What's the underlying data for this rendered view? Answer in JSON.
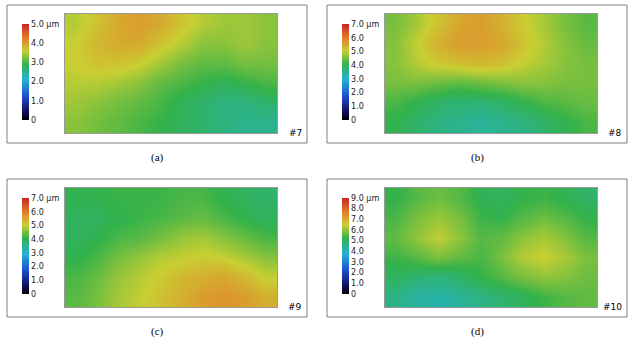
{
  "chart_data": [
    {
      "type": "heatmap",
      "label": "#7",
      "caption": "(a)",
      "tick_labels": false,
      "z": [
        [
          3.3,
          3.2,
          3.1,
          3.0,
          2.9,
          2.8,
          2.7,
          2.6,
          2.5,
          2.5
        ],
        [
          3.4,
          3.3,
          3.2,
          3.1,
          3.0,
          2.8,
          2.7,
          2.6,
          2.6,
          2.7
        ],
        [
          3.5,
          3.5,
          3.4,
          3.3,
          3.1,
          3.0,
          2.9,
          2.8,
          2.9,
          3.0
        ],
        [
          3.6,
          3.7,
          3.7,
          3.6,
          3.4,
          3.2,
          3.1,
          3.1,
          3.2,
          3.2
        ],
        [
          3.6,
          3.8,
          3.9,
          3.9,
          3.7,
          3.5,
          3.3,
          3.3,
          3.4,
          3.3
        ],
        [
          3.5,
          3.7,
          3.9,
          4.0,
          3.9,
          3.7,
          3.5,
          3.4,
          3.4,
          3.3
        ]
      ],
      "colorbar_range": [
        0,
        5
      ],
      "colorbar_ticks": [
        {
          "value": 5,
          "label": "5.0 µm"
        },
        {
          "value": 4,
          "label": "4.0"
        },
        {
          "value": 3,
          "label": "3.0"
        },
        {
          "value": 2,
          "label": "2.0"
        },
        {
          "value": 1,
          "label": "1.0"
        },
        0
      ]
    },
    {
      "type": "heatmap",
      "label": "#8",
      "caption": "(b)",
      "tick_labels": false,
      "z": [
        [
          4.0,
          3.8,
          3.6,
          3.5,
          3.4,
          3.5,
          3.6,
          3.8,
          4.0,
          4.2
        ],
        [
          4.2,
          4.0,
          3.8,
          3.7,
          3.7,
          3.8,
          4.0,
          4.2,
          4.3,
          4.4
        ],
        [
          4.5,
          4.5,
          4.4,
          4.3,
          4.4,
          4.5,
          4.6,
          4.6,
          4.5,
          4.5
        ],
        [
          4.6,
          4.9,
          5.1,
          5.2,
          5.3,
          5.2,
          5.0,
          4.8,
          4.6,
          4.5
        ],
        [
          4.6,
          5.0,
          5.4,
          5.6,
          5.6,
          5.5,
          5.2,
          4.9,
          4.6,
          4.4
        ],
        [
          4.5,
          4.8,
          5.2,
          5.5,
          5.6,
          5.4,
          5.1,
          4.8,
          4.5,
          4.3
        ]
      ],
      "colorbar_range": [
        0,
        7
      ],
      "colorbar_ticks": [
        {
          "value": 7,
          "label": "7.0 µm"
        },
        {
          "value": 6,
          "label": "6.0"
        },
        {
          "value": 5,
          "label": "5.0"
        },
        {
          "value": 4,
          "label": "4.0"
        },
        {
          "value": 3,
          "label": "3.0"
        },
        {
          "value": 2,
          "label": "2.0"
        },
        {
          "value": 1,
          "label": "1.0"
        },
        0
      ]
    },
    {
      "type": "heatmap",
      "label": "#9",
      "caption": "(c)",
      "tick_labels": false,
      "z": [
        [
          4.3,
          4.5,
          4.8,
          5.0,
          5.2,
          5.4,
          5.6,
          5.7,
          5.6,
          5.4
        ],
        [
          4.2,
          4.4,
          4.7,
          4.9,
          5.1,
          5.3,
          5.4,
          5.5,
          5.3,
          5.0
        ],
        [
          4.0,
          4.2,
          4.5,
          4.7,
          4.9,
          5.0,
          5.1,
          5.0,
          4.8,
          4.6
        ],
        [
          3.9,
          4.0,
          4.2,
          4.3,
          4.5,
          4.7,
          4.8,
          4.6,
          4.4,
          4.2
        ],
        [
          3.9,
          3.9,
          4.0,
          4.1,
          4.2,
          4.3,
          4.4,
          4.2,
          4.0,
          3.9
        ],
        [
          4.0,
          4.0,
          4.1,
          4.1,
          4.1,
          4.2,
          4.2,
          4.0,
          3.9,
          3.8
        ]
      ],
      "colorbar_range": [
        0,
        7
      ],
      "colorbar_ticks": [
        {
          "value": 7,
          "label": "7.0 µm"
        },
        {
          "value": 6,
          "label": "6.0"
        },
        {
          "value": 5,
          "label": "5.0"
        },
        {
          "value": 4,
          "label": "4.0"
        },
        {
          "value": 3,
          "label": "3.0"
        },
        {
          "value": 2,
          "label": "2.0"
        },
        {
          "value": 1,
          "label": "1.0"
        },
        0
      ]
    },
    {
      "type": "heatmap",
      "label": "#10",
      "caption": "(d)",
      "tick_labels": false,
      "z": [
        [
          4.6,
          4.3,
          4.2,
          4.4,
          4.6,
          4.8,
          5.0,
          5.3,
          5.5,
          5.6
        ],
        [
          5.0,
          4.8,
          4.7,
          4.9,
          5.2,
          5.5,
          5.8,
          6.0,
          5.9,
          5.7
        ],
        [
          5.3,
          5.5,
          5.8,
          5.6,
          5.4,
          5.8,
          6.3,
          6.5,
          6.2,
          5.8
        ],
        [
          5.6,
          6.0,
          6.4,
          6.0,
          5.5,
          5.6,
          6.0,
          6.2,
          5.9,
          5.5
        ],
        [
          5.4,
          5.8,
          6.1,
          5.8,
          5.3,
          5.2,
          5.5,
          5.7,
          5.5,
          5.2
        ],
        [
          5.2,
          5.5,
          5.7,
          5.5,
          5.1,
          5.0,
          5.2,
          5.3,
          5.1,
          4.9
        ]
      ],
      "colorbar_range": [
        0,
        9
      ],
      "colorbar_ticks": [
        {
          "value": 9,
          "label": "9.0 µm"
        },
        {
          "value": 8,
          "label": "8.0"
        },
        {
          "value": 7,
          "label": "7.0"
        },
        {
          "value": 6,
          "label": "6.0"
        },
        {
          "value": 5,
          "label": "5.0"
        },
        {
          "value": 4,
          "label": "4.0"
        },
        {
          "value": 3,
          "label": "3.0"
        },
        {
          "value": 2,
          "label": "2.0"
        },
        {
          "value": 1,
          "label": "1.0"
        },
        0
      ]
    }
  ]
}
